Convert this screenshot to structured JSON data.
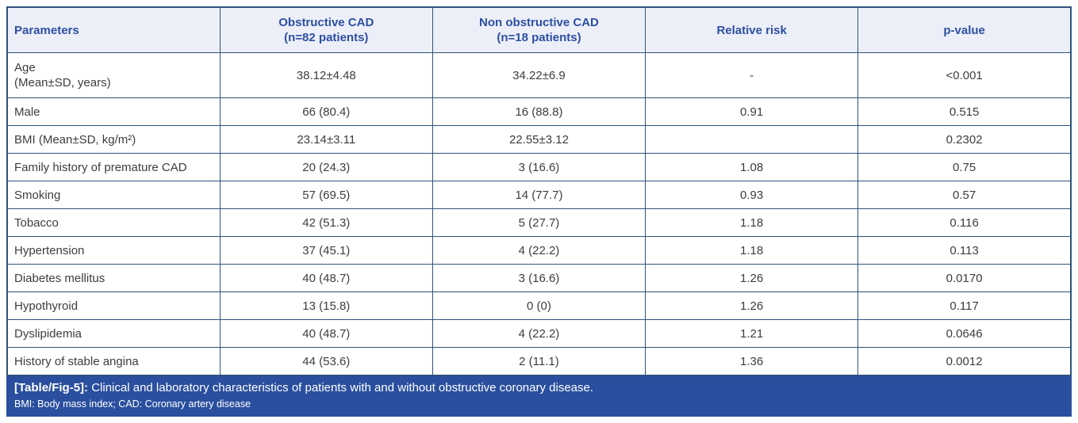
{
  "table": {
    "columns": {
      "parameters": "Parameters",
      "obstructive": "Obstructive CAD\n(n=82 patients)",
      "non_obstructive": "Non obstructive CAD\n(n=18 patients)",
      "relative_risk": "Relative risk",
      "p_value": "p-value"
    },
    "rows": [
      {
        "param": "Age\n(Mean±SD, years)",
        "obstructive": "38.12±4.48",
        "non_obstructive": "34.22±6.9",
        "relative_risk": "-",
        "p_value": "<0.001"
      },
      {
        "param": "Male",
        "obstructive": "66 (80.4)",
        "non_obstructive": "16 (88.8)",
        "relative_risk": "0.91",
        "p_value": "0.515"
      },
      {
        "param": "BMI (Mean±SD, kg/m²)",
        "obstructive": "23.14±3.11",
        "non_obstructive": "22.55±3.12",
        "relative_risk": "",
        "p_value": "0.2302"
      },
      {
        "param": "Family history of premature CAD",
        "obstructive": "20 (24.3)",
        "non_obstructive": "3 (16.6)",
        "relative_risk": "1.08",
        "p_value": "0.75"
      },
      {
        "param": "Smoking",
        "obstructive": "57 (69.5)",
        "non_obstructive": "14 (77.7)",
        "relative_risk": "0.93",
        "p_value": "0.57"
      },
      {
        "param": "Tobacco",
        "obstructive": "42 (51.3)",
        "non_obstructive": "5 (27.7)",
        "relative_risk": "1.18",
        "p_value": "0.116"
      },
      {
        "param": "Hypertension",
        "obstructive": "37 (45.1)",
        "non_obstructive": "4 (22.2)",
        "relative_risk": "1.18",
        "p_value": "0.113"
      },
      {
        "param": "Diabetes mellitus",
        "obstructive": "40 (48.7)",
        "non_obstructive": "3 (16.6)",
        "relative_risk": "1.26",
        "p_value": "0.0170"
      },
      {
        "param": "Hypothyroid",
        "obstructive": "13 (15.8)",
        "non_obstructive": "0 (0)",
        "relative_risk": "1.26",
        "p_value": "0.117"
      },
      {
        "param": "Dyslipidemia",
        "obstructive": "40 (48.7)",
        "non_obstructive": "4 (22.2)",
        "relative_risk": "1.21",
        "p_value": "0.0646"
      },
      {
        "param": "History of stable angina",
        "obstructive": "44 (53.6)",
        "non_obstructive": "2 (11.1)",
        "relative_risk": "1.36",
        "p_value": "0.0012"
      }
    ]
  },
  "caption": {
    "label": "[Table/Fig-5]:",
    "text": " Clinical and laboratory characteristics of patients with and without obstructive coronary disease.",
    "footnote": "BMI: Body mass index; CAD: Coronary artery disease"
  },
  "colors": {
    "border": "#2e527c",
    "header_bg": "#edeff8",
    "header_text": "#2d4fa1",
    "body_text": "#3d3d3d",
    "caption_bg": "#2a4f9e",
    "caption_text": "#ffffff"
  }
}
